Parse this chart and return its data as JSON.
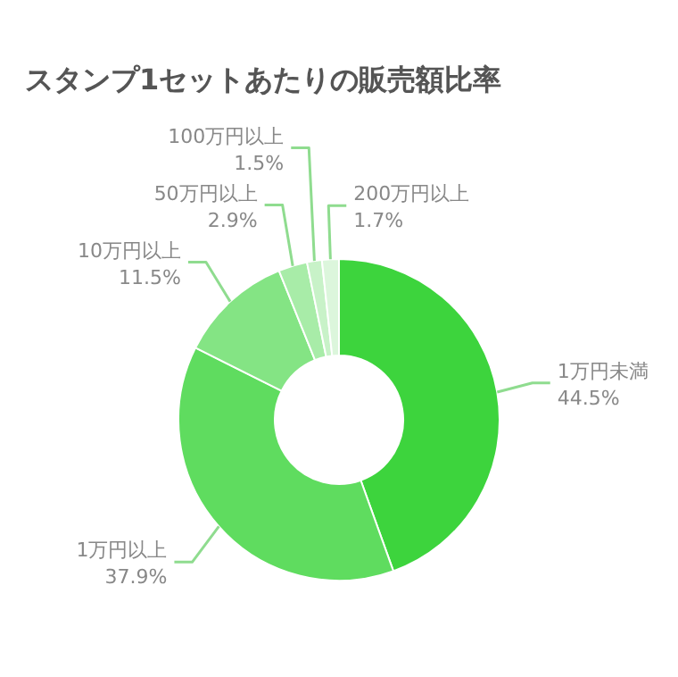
{
  "chart_data": {
    "type": "donut",
    "title": "スタンプ1セットあたりの販売額比率",
    "categories": [
      "1万円未満",
      "1万円以上",
      "10万円以上",
      "50万円以上",
      "100万円以上",
      "200万円以上"
    ],
    "values": [
      44.5,
      37.9,
      11.5,
      2.9,
      1.5,
      1.7
    ],
    "value_labels": [
      "44.5%",
      "37.9%",
      "11.5%",
      "2.9%",
      "1.5%",
      "1.7%"
    ],
    "colors": [
      "#3dd43d",
      "#5fdc5f",
      "#84e484",
      "#a8eca8",
      "#c8f2c8",
      "#dcf6dc"
    ]
  }
}
